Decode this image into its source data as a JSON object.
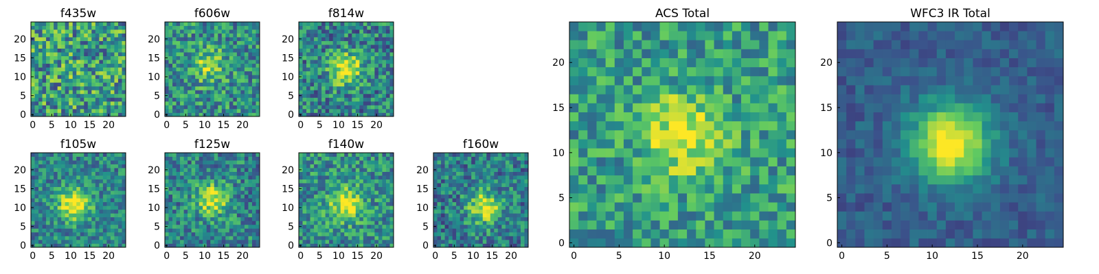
{
  "chart_data": [
    {
      "type": "heatmap",
      "title": "f435w",
      "peak": [
        12,
        11
      ],
      "peak_strength": 0.05,
      "noise": 0.62,
      "base": 0.55,
      "seed": 11,
      "xticks": [
        "0",
        "5",
        "10",
        "15",
        "20"
      ],
      "yticks": [
        "0",
        "5",
        "10",
        "15",
        "20"
      ],
      "xlim": [
        0,
        24
      ],
      "ylim": [
        0,
        24
      ]
    },
    {
      "type": "heatmap",
      "title": "f606w",
      "peak": [
        11,
        13
      ],
      "peak_strength": 0.35,
      "noise": 0.5,
      "base": 0.5,
      "seed": 23,
      "xticks": [
        "0",
        "5",
        "10",
        "15",
        "20"
      ],
      "yticks": [
        "0",
        "5",
        "10",
        "15",
        "20"
      ],
      "xlim": [
        0,
        24
      ],
      "ylim": [
        0,
        24
      ]
    },
    {
      "type": "heatmap",
      "title": "f814w",
      "peak": [
        12,
        12
      ],
      "peak_strength": 0.55,
      "noise": 0.5,
      "base": 0.45,
      "seed": 37,
      "xticks": [
        "0",
        "5",
        "10",
        "15",
        "20"
      ],
      "yticks": [
        "0",
        "5",
        "10",
        "15",
        "20"
      ],
      "xlim": [
        0,
        24
      ],
      "ylim": [
        0,
        24
      ]
    },
    {
      "type": "heatmap",
      "title": "f105w",
      "peak": [
        11,
        11
      ],
      "peak_strength": 0.6,
      "noise": 0.4,
      "base": 0.45,
      "seed": 41,
      "xticks": [
        "0",
        "5",
        "10",
        "15",
        "20"
      ],
      "yticks": [
        "0",
        "5",
        "10",
        "15",
        "20"
      ],
      "xlim": [
        0,
        24
      ],
      "ylim": [
        0,
        24
      ]
    },
    {
      "type": "heatmap",
      "title": "f125w",
      "peak": [
        12,
        12
      ],
      "peak_strength": 0.5,
      "noise": 0.45,
      "base": 0.45,
      "seed": 53,
      "xticks": [
        "0",
        "5",
        "10",
        "15",
        "20"
      ],
      "yticks": [
        "0",
        "5",
        "10",
        "15",
        "20"
      ],
      "xlim": [
        0,
        24
      ],
      "ylim": [
        0,
        24
      ]
    },
    {
      "type": "heatmap",
      "title": "f140w",
      "peak": [
        12,
        11
      ],
      "peak_strength": 0.5,
      "noise": 0.45,
      "base": 0.5,
      "seed": 67,
      "xticks": [
        "0",
        "5",
        "10",
        "15",
        "20"
      ],
      "yticks": [
        "0",
        "5",
        "10",
        "15",
        "20"
      ],
      "xlim": [
        0,
        24
      ],
      "ylim": [
        0,
        24
      ]
    },
    {
      "type": "heatmap",
      "title": "f160w",
      "peak": [
        13,
        10
      ],
      "peak_strength": 0.55,
      "noise": 0.45,
      "base": 0.42,
      "seed": 79,
      "xticks": [
        "0",
        "5",
        "10",
        "15",
        "20"
      ],
      "yticks": [
        "0",
        "5",
        "10",
        "15",
        "20"
      ],
      "xlim": [
        0,
        24
      ],
      "ylim": [
        0,
        24
      ]
    },
    {
      "type": "heatmap",
      "title": "ACS Total",
      "peak": [
        12,
        12
      ],
      "peak_strength": 0.45,
      "noise": 0.42,
      "base": 0.55,
      "seed": 97,
      "xticks": [
        "0",
        "5",
        "10",
        "15",
        "20"
      ],
      "yticks": [
        "0",
        "5",
        "10",
        "15",
        "20"
      ],
      "xlim": [
        0,
        24
      ],
      "ylim": [
        0,
        24
      ]
    },
    {
      "type": "heatmap",
      "title": "WFC3 IR Total",
      "peak": [
        12,
        11
      ],
      "peak_strength": 0.75,
      "noise": 0.18,
      "base": 0.3,
      "seed": 113,
      "xticks": [
        "0",
        "5",
        "10",
        "15",
        "20"
      ],
      "yticks": [
        "0",
        "5",
        "10",
        "15",
        "20"
      ],
      "xlim": [
        0,
        24
      ],
      "ylim": [
        0,
        24
      ]
    }
  ],
  "colormap": [
    "#440154",
    "#3b528b",
    "#21918c",
    "#5ec962",
    "#fde725"
  ]
}
